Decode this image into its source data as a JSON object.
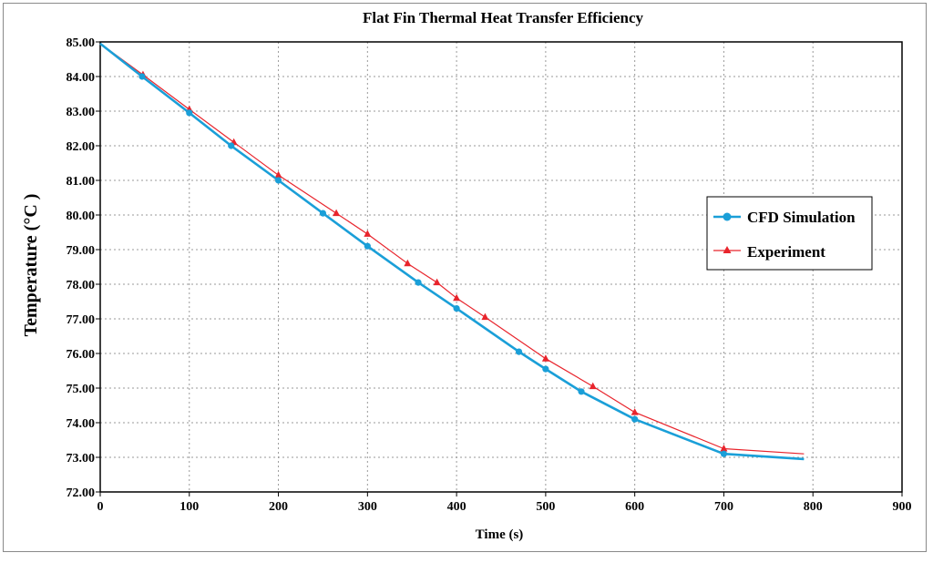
{
  "chart_data": {
    "type": "line",
    "title": "Flat Fin Thermal Heat Transfer  Efficiency",
    "xlabel": "Time (s)",
    "ylabel": "Temperature (°C )",
    "xlim": [
      0,
      900
    ],
    "ylim": [
      72,
      85
    ],
    "x_ticks": [
      0,
      100,
      200,
      300,
      400,
      500,
      600,
      700,
      800,
      900
    ],
    "y_ticks": [
      "72.00",
      "73.00",
      "74.00",
      "75.00",
      "76.00",
      "77.00",
      "78.00",
      "79.00",
      "80.00",
      "81.00",
      "82.00",
      "83.00",
      "84.00",
      "85.00"
    ],
    "grid": true,
    "legend_position": "right",
    "series": [
      {
        "name": "CFD Simulation",
        "color": "#1a9fd8",
        "marker": "circle",
        "x": [
          0,
          47,
          100,
          147,
          200,
          250,
          300,
          357,
          400,
          470,
          500,
          540,
          600,
          700,
          790
        ],
        "y": [
          84.95,
          84.0,
          82.95,
          82.0,
          81.0,
          80.05,
          79.1,
          78.05,
          77.3,
          76.05,
          75.55,
          74.9,
          74.1,
          73.1,
          72.95
        ],
        "marker_x": [
          47,
          100,
          147,
          200,
          250,
          300,
          357,
          400,
          470,
          500,
          540,
          600,
          700
        ],
        "marker_y": [
          84.0,
          82.95,
          82.0,
          81.0,
          80.05,
          79.1,
          78.05,
          77.3,
          76.05,
          75.55,
          74.9,
          74.1,
          73.1
        ]
      },
      {
        "name": "Experiment",
        "color": "#e8242c",
        "marker": "triangle",
        "x": [
          0,
          48,
          100,
          150,
          200,
          265,
          300,
          345,
          378,
          400,
          432,
          500,
          553,
          600,
          700,
          790
        ],
        "y": [
          84.95,
          84.05,
          83.05,
          82.1,
          81.15,
          80.05,
          79.45,
          78.6,
          78.05,
          77.6,
          77.05,
          75.85,
          75.05,
          74.3,
          73.25,
          73.1
        ],
        "marker_x": [
          48,
          100,
          150,
          200,
          265,
          300,
          345,
          378,
          400,
          432,
          500,
          553,
          600,
          700
        ],
        "marker_y": [
          84.05,
          83.05,
          82.1,
          81.15,
          80.05,
          79.45,
          78.6,
          78.05,
          77.6,
          77.05,
          75.85,
          75.05,
          74.3,
          73.25
        ]
      }
    ]
  }
}
